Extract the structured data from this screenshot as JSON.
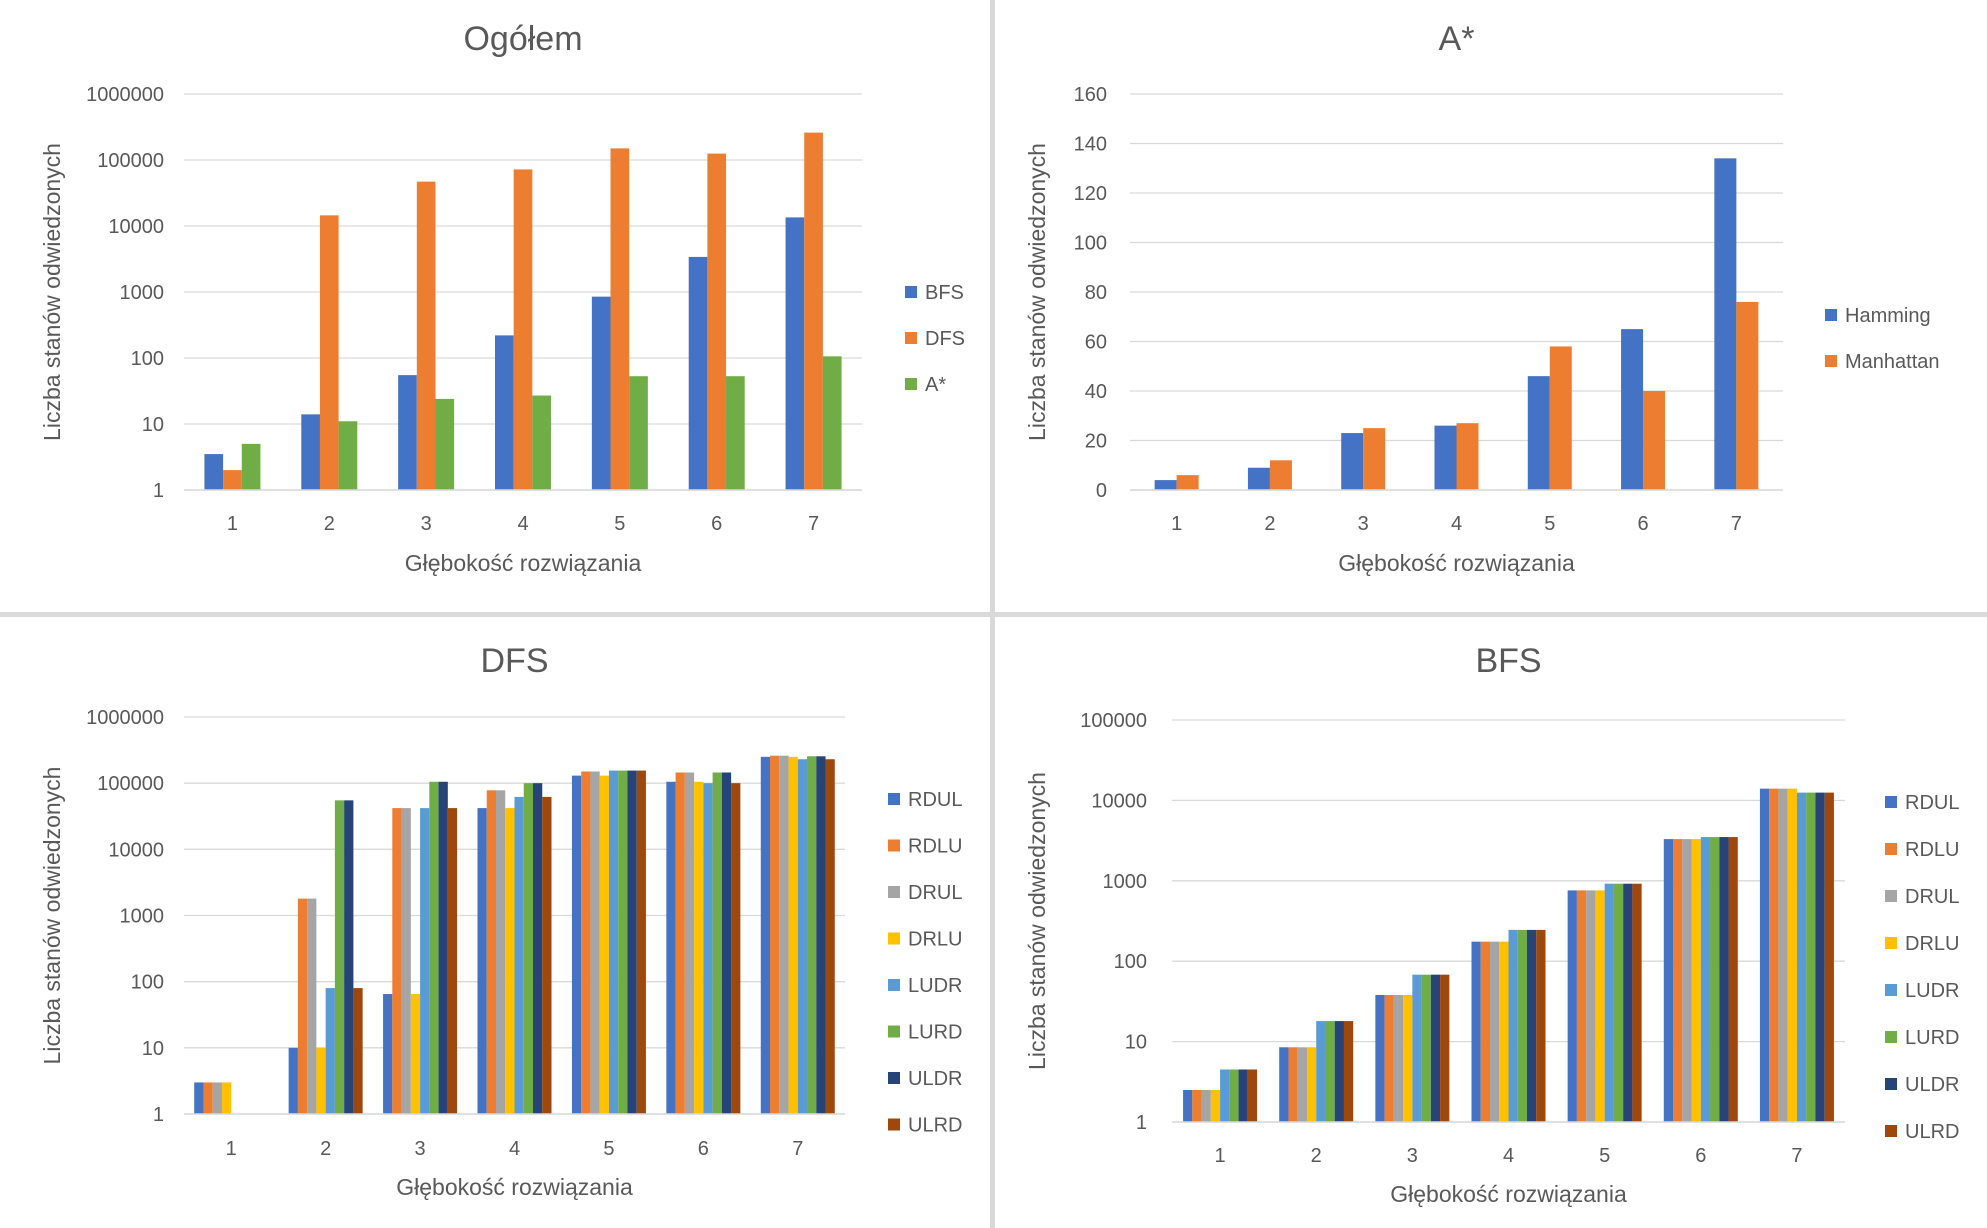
{
  "chart_data": [
    {
      "type": "bar",
      "title": "Ogółem",
      "xlabel": "Głębokość rozwiązania",
      "ylabel": "Liczba stanów odwiedzonych",
      "yscale": "log",
      "ylim": [
        1,
        1000000
      ],
      "yticks": [
        "1",
        "10",
        "100",
        "1000",
        "10000",
        "100000",
        "1000000"
      ],
      "grid": true,
      "legend": "right",
      "categories": [
        "1",
        "2",
        "3",
        "4",
        "5",
        "6",
        "7"
      ],
      "series": [
        {
          "name": "BFS",
          "color": "#4472c4",
          "values": [
            3.5,
            14,
            55,
            220,
            850,
            3400,
            13500
          ]
        },
        {
          "name": "DFS",
          "color": "#ed7d31",
          "values": [
            2,
            14500,
            47000,
            72000,
            150000,
            125000,
            260000
          ]
        },
        {
          "name": "A*",
          "color": "#70ad47",
          "values": [
            5,
            11,
            24,
            27,
            53,
            53,
            106
          ]
        }
      ]
    },
    {
      "type": "bar",
      "title": "A*",
      "xlabel": "Głębokość rozwiązania",
      "ylabel": "Liczba stanów odwiedzonych",
      "yscale": "linear",
      "ylim": [
        0,
        160
      ],
      "yticks": [
        "0",
        "20",
        "40",
        "60",
        "80",
        "100",
        "120",
        "140",
        "160"
      ],
      "grid": true,
      "legend": "right",
      "categories": [
        "1",
        "2",
        "3",
        "4",
        "5",
        "6",
        "7"
      ],
      "series": [
        {
          "name": "Hamming",
          "color": "#4472c4",
          "values": [
            4,
            9,
            23,
            26,
            46,
            65,
            134
          ]
        },
        {
          "name": "Manhattan",
          "color": "#ed7d31",
          "values": [
            6,
            12,
            25,
            27,
            58,
            40,
            76
          ]
        }
      ]
    },
    {
      "type": "bar",
      "title": "DFS",
      "xlabel": "Głębokość rozwiązania",
      "ylabel": "Liczba stanów odwiedzonych",
      "yscale": "log",
      "ylim": [
        1,
        1000000
      ],
      "yticks": [
        "1",
        "10",
        "100",
        "1000",
        "10000",
        "100000",
        "1000000"
      ],
      "grid": true,
      "legend": "right",
      "categories": [
        "1",
        "2",
        "3",
        "4",
        "5",
        "6",
        "7"
      ],
      "series": [
        {
          "name": "RDUL",
          "color": "#4472c4",
          "values": [
            3,
            10,
            65,
            42000,
            130000,
            105000,
            250000
          ]
        },
        {
          "name": "RDLU",
          "color": "#ed7d31",
          "values": [
            3,
            1800,
            42000,
            78000,
            150000,
            145000,
            260000
          ]
        },
        {
          "name": "DRUL",
          "color": "#a5a5a5",
          "values": [
            3,
            1800,
            42000,
            78000,
            150000,
            145000,
            260000
          ]
        },
        {
          "name": "DRLU",
          "color": "#ffc000",
          "values": [
            3,
            10,
            65,
            42000,
            130000,
            105000,
            250000
          ]
        },
        {
          "name": "LUDR",
          "color": "#5b9bd5",
          "values": [
            null,
            80,
            42000,
            62000,
            155000,
            100000,
            230000
          ]
        },
        {
          "name": "LURD",
          "color": "#70ad47",
          "values": [
            null,
            55000,
            105000,
            100000,
            155000,
            145000,
            255000
          ]
        },
        {
          "name": "ULDR",
          "color": "#264478",
          "values": [
            null,
            55000,
            105000,
            100000,
            155000,
            145000,
            255000
          ]
        },
        {
          "name": "ULRD",
          "color": "#9e480e",
          "values": [
            null,
            80,
            42000,
            62000,
            155000,
            100000,
            230000
          ]
        }
      ]
    },
    {
      "type": "bar",
      "title": "BFS",
      "xlabel": "Głębokość rozwiązania",
      "ylabel": "Liczba stanów odwiedzonych",
      "yscale": "log",
      "ylim": [
        1,
        100000
      ],
      "yticks": [
        "1",
        "10",
        "100",
        "1000",
        "10000",
        "100000"
      ],
      "grid": true,
      "legend": "right",
      "categories": [
        "1",
        "2",
        "3",
        "4",
        "5",
        "6",
        "7"
      ],
      "series": [
        {
          "name": "RDUL",
          "color": "#4472c4",
          "values": [
            2.5,
            8.5,
            38,
            175,
            760,
            3300,
            14000
          ]
        },
        {
          "name": "RDLU",
          "color": "#ed7d31",
          "values": [
            2.5,
            8.5,
            38,
            175,
            760,
            3300,
            14000
          ]
        },
        {
          "name": "DRUL",
          "color": "#a5a5a5",
          "values": [
            2.5,
            8.5,
            38,
            175,
            760,
            3300,
            14000
          ]
        },
        {
          "name": "DRLU",
          "color": "#ffc000",
          "values": [
            2.5,
            8.5,
            38,
            175,
            760,
            3300,
            14000
          ]
        },
        {
          "name": "LUDR",
          "color": "#5b9bd5",
          "values": [
            4.5,
            18,
            68,
            245,
            920,
            3500,
            12500
          ]
        },
        {
          "name": "LURD",
          "color": "#70ad47",
          "values": [
            4.5,
            18,
            68,
            245,
            920,
            3500,
            12500
          ]
        },
        {
          "name": "ULDR",
          "color": "#264478",
          "values": [
            4.5,
            18,
            68,
            245,
            920,
            3500,
            12500
          ]
        },
        {
          "name": "ULRD",
          "color": "#9e480e",
          "values": [
            4.5,
            18,
            68,
            245,
            920,
            3500,
            12500
          ]
        }
      ]
    }
  ]
}
